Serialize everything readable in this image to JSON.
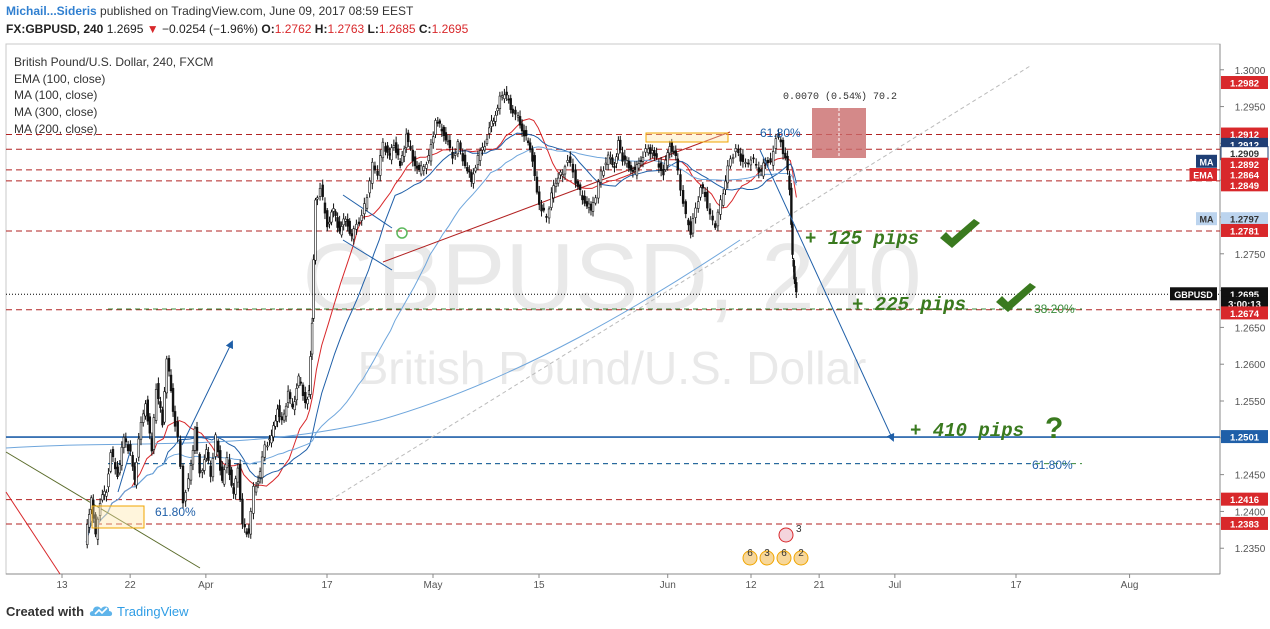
{
  "header": {
    "author": "Michail...Sideris",
    "published": "published on TradingView.com, June 09, 2017 08:59 EEST",
    "symbol": "FX:GBPUSD, 240",
    "last": "1.2695",
    "change": "−0.0254 (−1.96%)",
    "o_label": "O:",
    "o": "1.2762",
    "h_label": "H:",
    "h": "1.2763",
    "l_label": "L:",
    "l": "1.2685",
    "c_label": "C:",
    "c": "1.2695",
    "down_color": "#d8282b"
  },
  "legend": {
    "title": "British Pound/U.S. Dollar, 240, FXCM",
    "items": [
      "EMA (100, close)",
      "MA (100, close)",
      "MA (300, close)",
      "MA (200, close)"
    ]
  },
  "watermark": {
    "line1": "GBPUSD, 240",
    "line2": "British Pound/U.S. Dollar"
  },
  "footer": {
    "created_with": "Created with",
    "brand": "TradingView"
  },
  "chart_data": {
    "type": "candlestick",
    "symbol": "GBPUSD",
    "timeframe": "240",
    "y_range": [
      1.2315,
      1.3035
    ],
    "price_ticks": [
      1.235,
      1.24,
      1.245,
      1.25,
      1.255,
      1.26,
      1.265,
      1.27,
      1.275,
      1.28,
      1.285,
      1.29,
      1.295,
      1.3
    ],
    "tick_labels": [
      "1.2350",
      "1.2400",
      "1.2450",
      "1.2500",
      "1.2550",
      "1.2600",
      "1.2650",
      "1.2700",
      "1.2750",
      "1.2800",
      "1.2850",
      "1.2900",
      "1.2950",
      "1.3000"
    ],
    "x_range": [
      7.5,
      109.3
    ],
    "x_ticks": [
      {
        "label": "13",
        "day": 13
      },
      {
        "label": "22",
        "day": 22
      },
      {
        "label": "Apr",
        "day": 32
      },
      {
        "label": "17",
        "day": 48
      },
      {
        "label": "May",
        "day": 62
      },
      {
        "label": "15",
        "day": 76
      },
      {
        "label": "Jun",
        "day": 93
      },
      {
        "label": "12",
        "day": 104
      },
      {
        "label": "21",
        "day": 113
      },
      {
        "label": "Jul",
        "day": 123
      },
      {
        "label": "17",
        "day": 139
      },
      {
        "label": "Aug",
        "day": 154
      }
    ],
    "price_path": [
      [
        16.2,
        1.2358
      ],
      [
        17.0,
        1.242
      ],
      [
        17.6,
        1.2365
      ],
      [
        18.2,
        1.2415
      ],
      [
        19.0,
        1.243
      ],
      [
        19.6,
        1.248
      ],
      [
        20.5,
        1.245
      ],
      [
        21.3,
        1.25
      ],
      [
        22.2,
        1.248
      ],
      [
        22.7,
        1.244
      ],
      [
        23.3,
        1.25
      ],
      [
        24.2,
        1.255
      ],
      [
        25.0,
        1.248
      ],
      [
        25.6,
        1.257
      ],
      [
        26.4,
        1.252
      ],
      [
        27.0,
        1.261
      ],
      [
        27.8,
        1.254
      ],
      [
        28.5,
        1.25
      ],
      [
        29.2,
        1.2415
      ],
      [
        29.9,
        1.244
      ],
      [
        30.7,
        1.251
      ],
      [
        31.4,
        1.245
      ],
      [
        32.2,
        1.248
      ],
      [
        32.8,
        1.245
      ],
      [
        33.5,
        1.25
      ],
      [
        34.3,
        1.244
      ],
      [
        35.0,
        1.247
      ],
      [
        35.8,
        1.242
      ],
      [
        36.4,
        1.246
      ],
      [
        37.0,
        1.238
      ],
      [
        37.8,
        1.237
      ],
      [
        38.5,
        1.243
      ],
      [
        39.3,
        1.245
      ],
      [
        40.0,
        1.249
      ],
      [
        40.8,
        1.25
      ],
      [
        41.6,
        1.254
      ],
      [
        42.2,
        1.252
      ],
      [
        43.0,
        1.256
      ],
      [
        43.6,
        1.254
      ],
      [
        44.4,
        1.258
      ],
      [
        45.3,
        1.255
      ],
      [
        45.7,
        1.256
      ],
      [
        46.1,
        1.266
      ],
      [
        46.6,
        1.282
      ],
      [
        47.3,
        1.284
      ],
      [
        48.2,
        1.279
      ],
      [
        49.0,
        1.281
      ],
      [
        49.8,
        1.278
      ],
      [
        50.6,
        1.28
      ],
      [
        51.4,
        1.277
      ],
      [
        52.1,
        1.279
      ],
      [
        52.8,
        1.28
      ],
      [
        53.5,
        1.283
      ],
      [
        54.2,
        1.287
      ],
      [
        54.9,
        1.286
      ],
      [
        55.6,
        1.29
      ],
      [
        56.4,
        1.288
      ],
      [
        57.0,
        1.29
      ],
      [
        57.8,
        1.287
      ],
      [
        58.6,
        1.291
      ],
      [
        59.5,
        1.288
      ],
      [
        60.3,
        1.286
      ],
      [
        61.0,
        1.287
      ],
      [
        61.6,
        1.288
      ],
      [
        62.5,
        1.293
      ],
      [
        63.3,
        1.292
      ],
      [
        64.1,
        1.29
      ],
      [
        64.8,
        1.288
      ],
      [
        65.5,
        1.29
      ],
      [
        66.4,
        1.287
      ],
      [
        67.2,
        1.285
      ],
      [
        68.1,
        1.288
      ],
      [
        69.0,
        1.29
      ],
      [
        69.6,
        1.292
      ],
      [
        70.4,
        1.294
      ],
      [
        71.0,
        1.296
      ],
      [
        71.6,
        1.297
      ],
      [
        72.4,
        1.295
      ],
      [
        73.1,
        1.294
      ],
      [
        73.9,
        1.292
      ],
      [
        74.7,
        1.29
      ],
      [
        75.3,
        1.288
      ],
      [
        75.9,
        1.283
      ],
      [
        76.5,
        1.281
      ],
      [
        77.2,
        1.28
      ],
      [
        77.8,
        1.283
      ],
      [
        78.4,
        1.285
      ],
      [
        79.3,
        1.286
      ],
      [
        80.0,
        1.288
      ],
      [
        80.7,
        1.286
      ],
      [
        81.3,
        1.284
      ],
      [
        82.2,
        1.282
      ],
      [
        83.0,
        1.281
      ],
      [
        83.7,
        1.283
      ],
      [
        84.4,
        1.286
      ],
      [
        85.3,
        1.288
      ],
      [
        86.1,
        1.287
      ],
      [
        86.6,
        1.29
      ],
      [
        87.2,
        1.288
      ],
      [
        88.0,
        1.287
      ],
      [
        88.8,
        1.286
      ],
      [
        89.6,
        1.288
      ],
      [
        90.3,
        1.289
      ],
      [
        91.1,
        1.289
      ],
      [
        92.0,
        1.287
      ],
      [
        92.6,
        1.286
      ],
      [
        93.4,
        1.29
      ],
      [
        94.2,
        1.288
      ],
      [
        94.9,
        1.284
      ],
      [
        95.6,
        1.28
      ],
      [
        96.2,
        1.278
      ],
      [
        96.9,
        1.281
      ],
      [
        97.5,
        1.284
      ],
      [
        98.1,
        1.283
      ],
      [
        98.8,
        1.28
      ],
      [
        99.5,
        1.279
      ],
      [
        100.2,
        1.282
      ],
      [
        100.8,
        1.285
      ],
      [
        101.5,
        1.288
      ],
      [
        102.2,
        1.289
      ],
      [
        102.8,
        1.288
      ],
      [
        103.5,
        1.287
      ],
      [
        104.2,
        1.288
      ],
      [
        104.9,
        1.287
      ],
      [
        105.5,
        1.286
      ],
      [
        106.1,
        1.288
      ],
      [
        106.8,
        1.287
      ],
      [
        107.5,
        1.291
      ],
      [
        108.1,
        1.29
      ],
      [
        108.7,
        1.288
      ],
      [
        109.2,
        1.284
      ],
      [
        109.5,
        1.2745
      ],
      [
        109.7,
        1.272
      ],
      [
        110.0,
        1.2695
      ]
    ],
    "horizontal_levels": [
      {
        "price": 1.2912,
        "color": "#b22222",
        "style": "dashed"
      },
      {
        "price": 1.2892,
        "color": "#b22222",
        "style": "dashed"
      },
      {
        "price": 1.2864,
        "color": "#b22222",
        "style": "dashed"
      },
      {
        "price": 1.2849,
        "color": "#b22222",
        "style": "dashed"
      },
      {
        "price": 1.2781,
        "color": "#b22222",
        "style": "dashed"
      },
      {
        "price": 1.2674,
        "color": "#b22222",
        "style": "dashed"
      },
      {
        "price": 1.2416,
        "color": "#b22222",
        "style": "dashed"
      },
      {
        "price": 1.2383,
        "color": "#b22222",
        "style": "dashed"
      },
      {
        "price": 1.2695,
        "color": "#000000",
        "style": "dotted"
      },
      {
        "price": 1.2501,
        "color": "#1f5fa8",
        "style": "solid"
      }
    ],
    "axis_badges": [
      {
        "label": "1.2982",
        "price": 1.2982,
        "bg": "#d8282b"
      },
      {
        "label": "1.2912",
        "price": 1.2912,
        "bg": "#d8282b"
      },
      {
        "label": "1.2912",
        "price": 1.2898,
        "bg": "#1f3f75"
      },
      {
        "label": "1.2909",
        "price": 1.2886,
        "bg": "#ffffff",
        "fg": "#333",
        "border": "#1f3f75"
      },
      {
        "label": "1.2892",
        "price": 1.2871,
        "bg": "#d8282b"
      },
      {
        "label": "1.2864",
        "price": 1.2857,
        "bg": "#d8282b"
      },
      {
        "label": "1.2849",
        "price": 1.2843,
        "bg": "#d8282b"
      },
      {
        "label": "1.2797",
        "price": 1.2797,
        "bg": "#bcd4ee",
        "fg": "#333"
      },
      {
        "label": "1.2781",
        "price": 1.2781,
        "bg": "#d8282b"
      },
      {
        "label": "1.2695",
        "price": 1.2695,
        "bg": "#111111"
      },
      {
        "label": "3:00:13",
        "price": 1.2682,
        "bg": "#111111"
      },
      {
        "label": "1.2674",
        "price": 1.2669,
        "bg": "#d8282b"
      },
      {
        "label": "1.2501",
        "price": 1.2501,
        "bg": "#1f5fa8"
      },
      {
        "label": "1.2416",
        "price": 1.2416,
        "bg": "#d8282b"
      },
      {
        "label": "1.2383",
        "price": 1.2383,
        "bg": "#d8282b"
      }
    ],
    "indicator_tags": [
      {
        "label": "MA",
        "price": 1.2875,
        "bg": "#1f3f75"
      },
      {
        "label": "EMA",
        "price": 1.2857,
        "bg": "#d8282b"
      },
      {
        "label": "MA",
        "price": 1.2797,
        "bg": "#bcd4ee",
        "fg": "#333"
      },
      {
        "label": "GBPUSD",
        "price": 1.2695,
        "bg": "#111111"
      }
    ],
    "annotations": [
      {
        "text": "+ 125 pips",
        "check": true
      },
      {
        "text": "+ 225 pips",
        "check": true
      },
      {
        "text": "+ 410 pips",
        "question": "?"
      }
    ],
    "fib_labels": [
      {
        "text": "61.80%",
        "color": "#1f5fa8"
      },
      {
        "text": "38.20%",
        "color": "#3a8a3a"
      },
      {
        "text": "61.80%",
        "color": "#1f5fa8"
      },
      {
        "text": "61.80%",
        "color": "#1f5fa8"
      }
    ],
    "measure_label": "0.0070 (0.54%) 70.2",
    "events": {
      "top": "3",
      "row": [
        "6",
        "3",
        "6",
        "2"
      ]
    },
    "colors": {
      "bull_bear_candle": "#111111",
      "ema": "#d8282b",
      "ma_blue": "#1f5fa8",
      "ma_light": "#6fa6dc",
      "levels": "#b22222",
      "pips_text": "#3a7a1f"
    }
  }
}
